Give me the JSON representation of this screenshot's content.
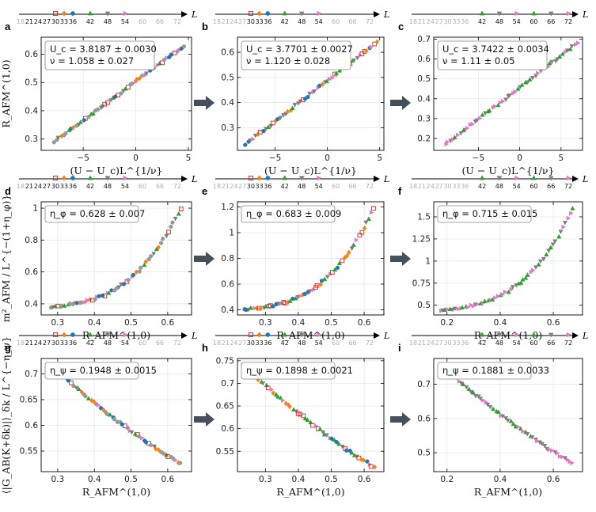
{
  "figure": {
    "arrow_color": "#44505c",
    "L_axis_symbol": "L",
    "colors_by_L": {
      "18": "#999999",
      "21": "#999999",
      "24": "#999999",
      "27": "#999999",
      "30": "#d62728",
      "33": "#ff7f0e",
      "36": "#1f77b4",
      "42": "#2ca02c",
      "48": "#7f7f7f",
      "54": "#e377c2",
      "60": "#2ca02c",
      "66": "#7f7f7f",
      "72": "#e377c2"
    },
    "marker_by_L": {
      "18": "circle",
      "21": "circle",
      "24": "circle",
      "27": "circle",
      "30": "square",
      "33": "diamond",
      "36": "circle",
      "42": "triangle-up",
      "48": "triangle-down",
      "54": "triangle-right",
      "60": "triangle-up",
      "66": "triangle-down",
      "72": "triangle-right"
    }
  },
  "chart_data": [
    {
      "panel": "a",
      "type": "scatter",
      "row": 0,
      "col": 0,
      "L_sizes_all": [
        "18",
        "21",
        "24",
        "27",
        "30",
        "33",
        "36",
        "42",
        "48",
        "54",
        "60",
        "66",
        "72"
      ],
      "L_sizes_used": [
        "21",
        "24",
        "27",
        "30",
        "33",
        "36",
        "42",
        "48",
        "54"
      ],
      "legend_L": [
        "30",
        "33",
        "36",
        "42",
        "48",
        "54"
      ],
      "xlabel": "(U − U_c)L^{1/ν}",
      "ylabel": "R_AFM^(1,0)",
      "xlim": [
        -9,
        5.3
      ],
      "ylim": [
        0.26,
        0.66
      ],
      "xticks": [
        -5,
        0,
        5
      ],
      "yticks": [
        0.3,
        0.4,
        0.5,
        0.6
      ],
      "box_lines": [
        "U_c = 3.8187 ± 0.0030",
        "ν = 1.058 ± 0.027"
      ],
      "curve": {
        "x0": -7.8,
        "x1": 4.6,
        "y0": 0.29,
        "y1": 0.63,
        "curvature": 0.0
      }
    },
    {
      "panel": "b",
      "type": "scatter",
      "row": 0,
      "col": 1,
      "L_sizes_all": [
        "18",
        "21",
        "24",
        "27",
        "30",
        "33",
        "36",
        "42",
        "48",
        "54",
        "60",
        "66",
        "72"
      ],
      "L_sizes_used": [
        "30",
        "33",
        "36",
        "42",
        "48",
        "54"
      ],
      "legend_L": [
        "30",
        "33",
        "36",
        "42",
        "48",
        "54"
      ],
      "xlabel": "(U − U_c)L^{1/ν}",
      "ylabel": "",
      "xlim": [
        -8.6,
        5.4
      ],
      "ylim": [
        0.21,
        0.66
      ],
      "xticks": [
        -5,
        0,
        5
      ],
      "yticks": [
        0.3,
        0.4,
        0.5,
        0.6
      ],
      "box_lines": [
        "U_c = 3.7701 ± 0.0027",
        "ν = 1.120 ± 0.028"
      ],
      "curve": {
        "x0": -7.8,
        "x1": 4.7,
        "y0": 0.235,
        "y1": 0.64,
        "curvature": 0.0
      }
    },
    {
      "panel": "c",
      "type": "scatter",
      "row": 0,
      "col": 2,
      "L_sizes_all": [
        "18",
        "21",
        "24",
        "27",
        "30",
        "33",
        "36",
        "42",
        "48",
        "54",
        "60",
        "66",
        "72"
      ],
      "L_sizes_used": [
        "42",
        "48",
        "54",
        "60",
        "66",
        "72"
      ],
      "legend_L": [
        "42",
        "48",
        "54",
        "60",
        "66",
        "72"
      ],
      "xlabel": "(U − U_c)L^{1/ν}",
      "ylabel": "",
      "xlim": [
        -10.4,
        7.6
      ],
      "ylim": [
        0.14,
        0.71
      ],
      "xticks": [
        -5,
        0,
        5
      ],
      "yticks": [
        0.2,
        0.3,
        0.4,
        0.5,
        0.6,
        0.7
      ],
      "box_lines": [
        "U_c = 3.7422 ± 0.0034",
        "ν = 1.11 ± 0.05"
      ],
      "curve": {
        "x0": -9.0,
        "x1": 7.0,
        "y0": 0.17,
        "y1": 0.68,
        "curvature": 0.0
      }
    },
    {
      "panel": "d",
      "type": "scatter",
      "row": 1,
      "col": 0,
      "L_sizes_all": [
        "18",
        "21",
        "24",
        "27",
        "30",
        "33",
        "36",
        "42",
        "48",
        "54",
        "60",
        "66",
        "72"
      ],
      "L_sizes_used": [
        "21",
        "24",
        "27",
        "30",
        "33",
        "36",
        "42",
        "48",
        "54"
      ],
      "legend_L": [
        "30",
        "33",
        "36",
        "42",
        "48",
        "54"
      ],
      "xlabel": "R_AFM^(1,0)",
      "ylabel": "m²_AFM / L^{−(1+η_φ)}",
      "xlim": [
        0.255,
        0.665
      ],
      "ylim": [
        0.33,
        1.04
      ],
      "xticks": [
        0.3,
        0.4,
        0.5,
        0.6
      ],
      "yticks": [
        0.4,
        0.6,
        0.8,
        1.0
      ],
      "box_lines": [
        "η_φ = 0.628 ± 0.007"
      ],
      "curve": {
        "x0": 0.28,
        "x1": 0.635,
        "y0": 0.38,
        "y1": 1.0,
        "curvature": 1.0
      }
    },
    {
      "panel": "e",
      "type": "scatter",
      "row": 1,
      "col": 1,
      "L_sizes_all": [
        "18",
        "21",
        "24",
        "27",
        "30",
        "33",
        "36",
        "42",
        "48",
        "54",
        "60",
        "66",
        "72"
      ],
      "L_sizes_used": [
        "30",
        "33",
        "36",
        "42",
        "48",
        "54"
      ],
      "legend_L": [
        "30",
        "33",
        "36",
        "42",
        "48",
        "54"
      ],
      "xlabel": "R_AFM^(1,0)",
      "ylabel": "",
      "xlim": [
        0.215,
        0.66
      ],
      "ylim": [
        0.36,
        1.24
      ],
      "xticks": [
        0.3,
        0.4,
        0.5,
        0.6
      ],
      "yticks": [
        0.4,
        0.6,
        0.8,
        1.0,
        1.2
      ],
      "box_lines": [
        "η_φ = 0.683 ± 0.009"
      ],
      "curve": {
        "x0": 0.235,
        "x1": 0.63,
        "y0": 0.4,
        "y1": 1.19,
        "curvature": 1.0
      }
    },
    {
      "panel": "f",
      "type": "scatter",
      "row": 1,
      "col": 2,
      "L_sizes_all": [
        "18",
        "21",
        "24",
        "27",
        "30",
        "33",
        "36",
        "42",
        "48",
        "54",
        "60",
        "66",
        "72"
      ],
      "L_sizes_used": [
        "42",
        "48",
        "54",
        "60",
        "66",
        "72"
      ],
      "legend_L": [
        "42",
        "48",
        "54",
        "60",
        "66",
        "72"
      ],
      "xlabel": "R_AFM^(1,0)",
      "ylabel": "",
      "xlim": [
        0.15,
        0.71
      ],
      "ylim": [
        0.39,
        1.67
      ],
      "xticks": [
        0.2,
        0.4,
        0.6
      ],
      "yticks": [
        0.5,
        0.75,
        1.0,
        1.25,
        1.5
      ],
      "box_lines": [
        "η_φ = 0.715 ± 0.015"
      ],
      "curve": {
        "x0": 0.175,
        "x1": 0.675,
        "y0": 0.44,
        "y1": 1.6,
        "curvature": 1.0
      }
    },
    {
      "panel": "g",
      "type": "scatter",
      "row": 2,
      "col": 0,
      "L_sizes_all": [
        "18",
        "21",
        "24",
        "27",
        "30",
        "33",
        "36",
        "42",
        "48",
        "54",
        "60",
        "66",
        "72"
      ],
      "L_sizes_used": [
        "21",
        "24",
        "27",
        "30",
        "33",
        "36",
        "42",
        "48",
        "54"
      ],
      "legend_L": [
        "30",
        "33",
        "36",
        "42",
        "48",
        "54"
      ],
      "xlabel": "R_AFM^(1,0)",
      "ylabel": "⟨|G_AB(K+δk)|⟩_δk / L^{−η_ψ}",
      "xlim": [
        0.255,
        0.665
      ],
      "ylim": [
        0.51,
        0.73
      ],
      "xticks": [
        0.3,
        0.4,
        0.5,
        0.6
      ],
      "yticks": [
        0.55,
        0.6,
        0.65,
        0.7
      ],
      "box_lines": [
        "η_ψ = 0.1948 ± 0.0015"
      ],
      "curve": {
        "x0": 0.285,
        "x1": 0.635,
        "y0": 0.715,
        "y1": 0.525,
        "curvature": -0.35
      }
    },
    {
      "panel": "h",
      "type": "scatter",
      "row": 2,
      "col": 1,
      "L_sizes_all": [
        "18",
        "21",
        "24",
        "27",
        "30",
        "33",
        "36",
        "42",
        "48",
        "54",
        "60",
        "66",
        "72"
      ],
      "L_sizes_used": [
        "30",
        "33",
        "36",
        "42",
        "48",
        "54"
      ],
      "legend_L": [
        "30",
        "33",
        "36",
        "42",
        "48",
        "54"
      ],
      "xlabel": "R_AFM^(1,0)",
      "ylabel": "",
      "xlim": [
        0.215,
        0.66
      ],
      "ylim": [
        0.505,
        0.755
      ],
      "xticks": [
        0.3,
        0.4,
        0.5,
        0.6
      ],
      "yticks": [
        0.55,
        0.6,
        0.65,
        0.7,
        0.75
      ],
      "box_lines": [
        "η_ψ = 0.1898 ± 0.0021"
      ],
      "curve": {
        "x0": 0.235,
        "x1": 0.63,
        "y0": 0.74,
        "y1": 0.515,
        "curvature": -0.35
      }
    },
    {
      "panel": "i",
      "type": "scatter",
      "row": 2,
      "col": 2,
      "L_sizes_all": [
        "18",
        "21",
        "24",
        "27",
        "30",
        "33",
        "36",
        "42",
        "48",
        "54",
        "60",
        "66",
        "72"
      ],
      "L_sizes_used": [
        "42",
        "48",
        "54",
        "60",
        "66",
        "72"
      ],
      "legend_L": [
        "42",
        "48",
        "54",
        "60",
        "66",
        "72"
      ],
      "xlabel": "R_AFM^(1,0)",
      "ylabel": "",
      "xlim": [
        0.15,
        0.71
      ],
      "ylim": [
        0.445,
        0.775
      ],
      "xticks": [
        0.2,
        0.4,
        0.6
      ],
      "yticks": [
        0.5,
        0.6,
        0.7
      ],
      "box_lines": [
        "η_ψ = 0.1881 ± 0.0033"
      ],
      "curve": {
        "x0": 0.18,
        "x1": 0.67,
        "y0": 0.755,
        "y1": 0.47,
        "curvature": -0.35
      }
    }
  ]
}
